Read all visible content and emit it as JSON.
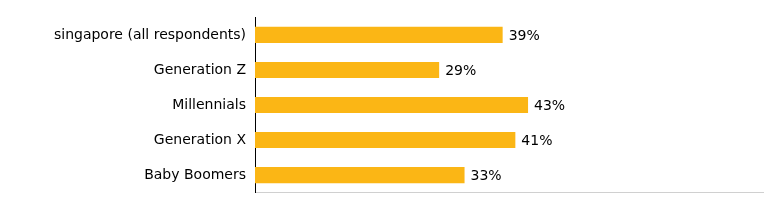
{
  "chart_data": {
    "type": "bar",
    "orientation": "horizontal",
    "categories": [
      "singapore (all respondents)",
      "Generation Z",
      "Millennials",
      "Generation X",
      "Baby Boomers"
    ],
    "values": [
      39,
      29,
      43,
      41,
      33
    ],
    "value_labels": [
      "39%",
      "29%",
      "43%",
      "41%",
      "33%"
    ],
    "color": "#fbb615",
    "xlim": [
      0,
      80
    ],
    "grid": false,
    "legend": "none",
    "data_labels": true,
    "tick_labels": "y"
  }
}
